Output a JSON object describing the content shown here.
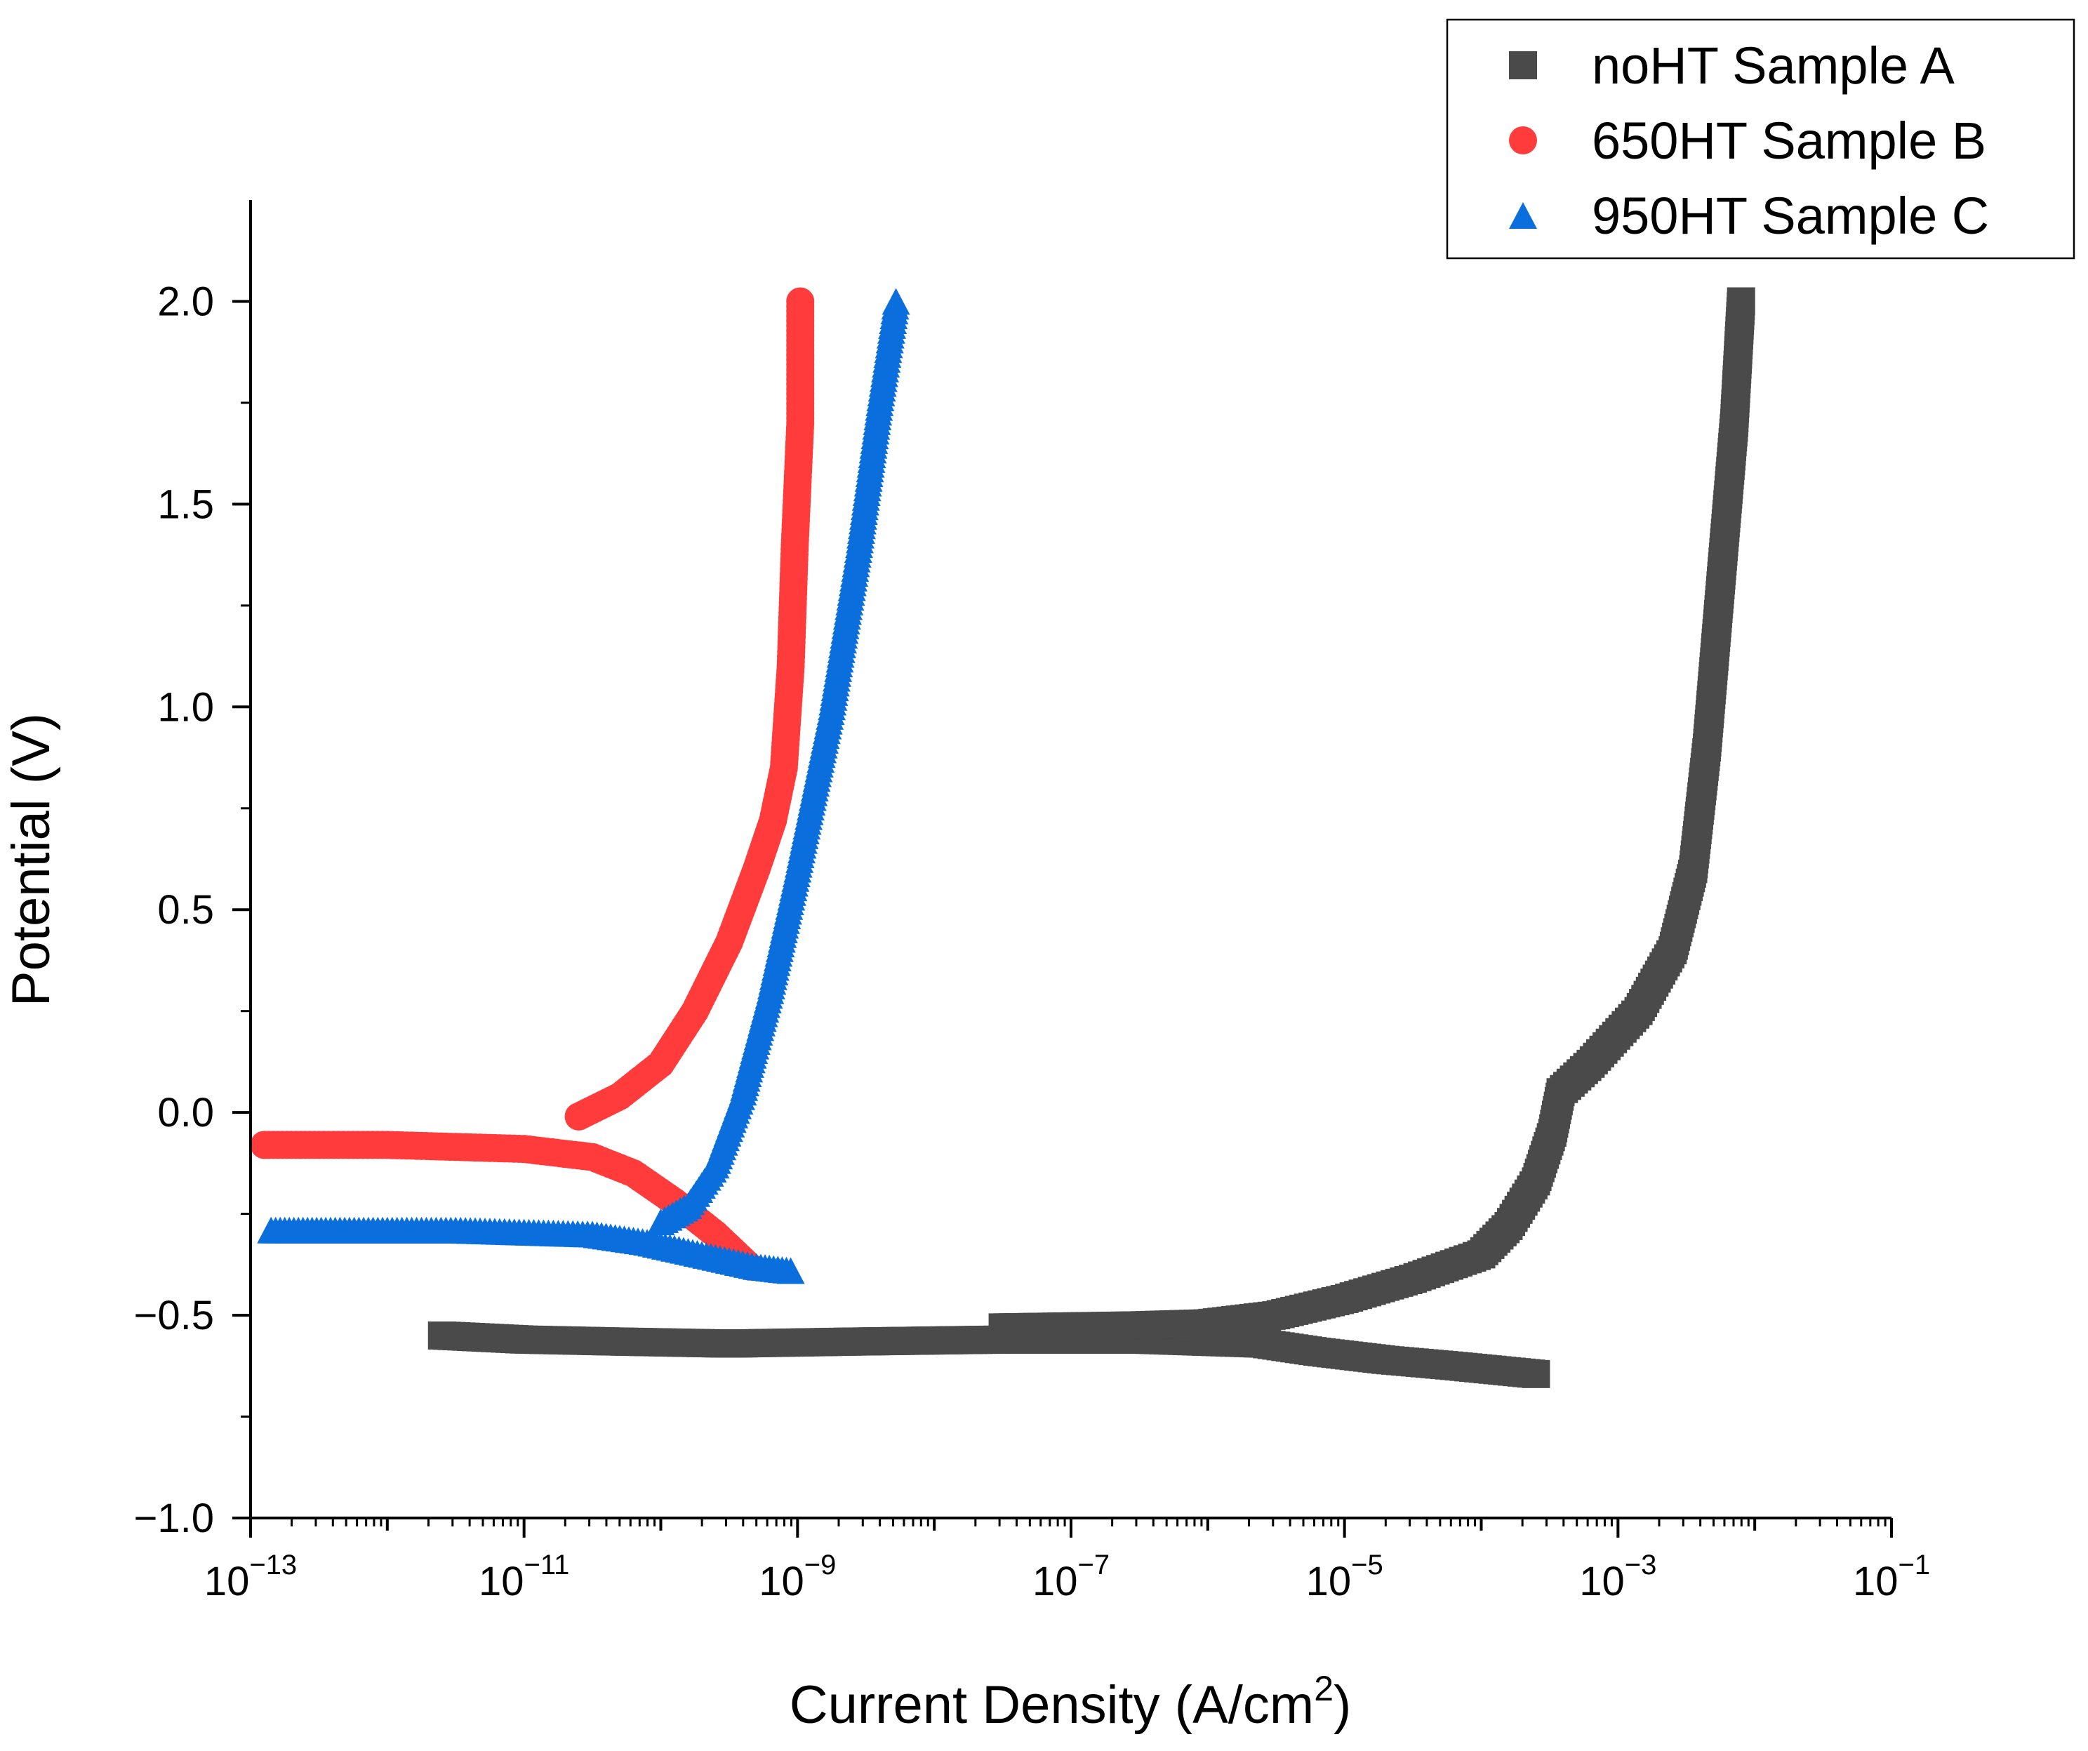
{
  "chart_data": {
    "type": "scatter",
    "title": "",
    "xlabel": "Current Density (A/cm",
    "xlabel_sup": "2",
    "xlabel_suffix": ")",
    "ylabel": "Potential (V)",
    "x_scale": "log",
    "xlim_exp": [
      -13,
      -1
    ],
    "ylim": [
      -1.0,
      2.25
    ],
    "x_ticks": [
      {
        "base": "10",
        "exp": "−13",
        "value": -13
      },
      {
        "base": "10",
        "exp": "−11",
        "value": -11
      },
      {
        "base": "10",
        "exp": "−9",
        "value": -9
      },
      {
        "base": "10",
        "exp": "−7",
        "value": -7
      },
      {
        "base": "10",
        "exp": "−5",
        "value": -5
      },
      {
        "base": "10",
        "exp": "−3",
        "value": -3
      },
      {
        "base": "10",
        "exp": "−1",
        "value": -1
      }
    ],
    "y_ticks": [
      {
        "label": "−1.0",
        "value": -1.0
      },
      {
        "label": "−0.5",
        "value": -0.5
      },
      {
        "label": "0.0",
        "value": 0.0
      },
      {
        "label": "0.5",
        "value": 0.5
      },
      {
        "label": "1.0",
        "value": 1.0
      },
      {
        "label": "1.5",
        "value": 1.5
      },
      {
        "label": "2.0",
        "value": 2.0
      }
    ],
    "legend_position": "top-right",
    "series": [
      {
        "name": "noHT Sample A",
        "marker": "square",
        "color": "#4a4a4a",
        "points_log10_x_vs_V": [
          [
            -11.6,
            -0.55
          ],
          [
            -11.0,
            -0.56
          ],
          [
            -10.3,
            -0.565
          ],
          [
            -9.5,
            -0.57
          ],
          [
            -8.6,
            -0.565
          ],
          [
            -7.5,
            -0.56
          ],
          [
            -6.5,
            -0.56
          ],
          [
            -5.6,
            -0.57
          ],
          [
            -5.2,
            -0.59
          ],
          [
            -4.7,
            -0.61
          ],
          [
            -4.2,
            -0.625
          ],
          [
            -3.6,
            -0.645
          ],
          [
            -7.5,
            -0.53
          ],
          [
            -6.5,
            -0.525
          ],
          [
            -6.0,
            -0.52
          ],
          [
            -5.5,
            -0.5
          ],
          [
            -5.0,
            -0.46
          ],
          [
            -4.5,
            -0.41
          ],
          [
            -4.0,
            -0.35
          ],
          [
            -3.8,
            -0.28
          ],
          [
            -3.6,
            -0.17
          ],
          [
            -3.48,
            -0.05
          ],
          [
            -3.42,
            0.05
          ],
          [
            -3.2,
            0.12
          ],
          [
            -2.85,
            0.25
          ],
          [
            -2.6,
            0.4
          ],
          [
            -2.45,
            0.6
          ],
          [
            -2.35,
            0.9
          ],
          [
            -2.25,
            1.3
          ],
          [
            -2.15,
            1.7
          ],
          [
            -2.1,
            2.0
          ]
        ]
      },
      {
        "name": "650HT Sample B",
        "marker": "circle",
        "color": "#ff3b3b",
        "points_log10_x_vs_V": [
          [
            -12.9,
            -0.08
          ],
          [
            -12.5,
            -0.08
          ],
          [
            -12.0,
            -0.08
          ],
          [
            -11.5,
            -0.085
          ],
          [
            -11.0,
            -0.09
          ],
          [
            -10.5,
            -0.11
          ],
          [
            -10.2,
            -0.15
          ],
          [
            -9.9,
            -0.22
          ],
          [
            -9.6,
            -0.3
          ],
          [
            -9.35,
            -0.38
          ],
          [
            -10.6,
            -0.01
          ],
          [
            -10.3,
            0.04
          ],
          [
            -10.0,
            0.12
          ],
          [
            -9.75,
            0.25
          ],
          [
            -9.5,
            0.42
          ],
          [
            -9.3,
            0.6
          ],
          [
            -9.18,
            0.72
          ],
          [
            -9.1,
            0.85
          ],
          [
            -9.05,
            1.1
          ],
          [
            -9.02,
            1.4
          ],
          [
            -8.98,
            1.7
          ],
          [
            -8.98,
            2.0
          ]
        ]
      },
      {
        "name": "950HT Sample C",
        "marker": "triangle",
        "color": "#0a6fdc",
        "points_log10_x_vs_V": [
          [
            -12.85,
            -0.29
          ],
          [
            -12.45,
            -0.29
          ],
          [
            -12.0,
            -0.29
          ],
          [
            -11.5,
            -0.29
          ],
          [
            -11.0,
            -0.295
          ],
          [
            -10.5,
            -0.3
          ],
          [
            -10.1,
            -0.32
          ],
          [
            -9.7,
            -0.35
          ],
          [
            -9.3,
            -0.38
          ],
          [
            -9.05,
            -0.39
          ],
          [
            -10.0,
            -0.27
          ],
          [
            -9.8,
            -0.23
          ],
          [
            -9.6,
            -0.13
          ],
          [
            -9.4,
            0.05
          ],
          [
            -9.2,
            0.3
          ],
          [
            -9.0,
            0.6
          ],
          [
            -8.75,
            1.0
          ],
          [
            -8.55,
            1.4
          ],
          [
            -8.4,
            1.75
          ],
          [
            -8.28,
            2.0
          ]
        ]
      }
    ]
  }
}
